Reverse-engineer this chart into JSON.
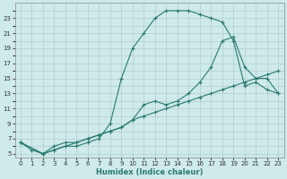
{
  "xlabel": "Humidex (Indice chaleur)",
  "bg_color": "#ceeaea",
  "grid_color": "#b8d8d8",
  "line_color": "#2a7a70",
  "xlim": [
    -0.5,
    23.5
  ],
  "ylim": [
    4.5,
    25
  ],
  "xticks": [
    0,
    1,
    2,
    3,
    4,
    5,
    6,
    7,
    8,
    9,
    10,
    11,
    12,
    13,
    14,
    15,
    16,
    17,
    18,
    19,
    20,
    21,
    22,
    23
  ],
  "yticks": [
    5,
    7,
    9,
    11,
    13,
    15,
    17,
    19,
    21,
    23
  ],
  "curve1_x": [
    0,
    1,
    2,
    3,
    4,
    5,
    6,
    7,
    8,
    9,
    10,
    11,
    12,
    13,
    14,
    15,
    16,
    17,
    18,
    19,
    20,
    21,
    22,
    23
  ],
  "curve1_y": [
    6.5,
    5.5,
    5.0,
    5.5,
    6.0,
    6.0,
    6.5,
    7.0,
    9.0,
    15.0,
    19.0,
    21.0,
    23.0,
    24.0,
    24.0,
    24.0,
    23.5,
    23.0,
    22.5,
    20.0,
    14.0,
    14.5,
    13.5,
    13.0
  ],
  "curve2_x": [
    0,
    2,
    3,
    4,
    5,
    6,
    7,
    8,
    9,
    10,
    11,
    12,
    13,
    14,
    15,
    16,
    17,
    18,
    19,
    20,
    21,
    22,
    23
  ],
  "curve2_y": [
    6.5,
    5.0,
    5.5,
    6.0,
    6.5,
    7.0,
    7.5,
    8.0,
    8.5,
    9.5,
    11.5,
    12.0,
    11.5,
    12.0,
    13.0,
    14.5,
    16.5,
    20.0,
    20.5,
    16.5,
    15.0,
    15.0,
    13.0
  ],
  "curve3_x": [
    0,
    2,
    3,
    4,
    5,
    6,
    7,
    8,
    9,
    10,
    11,
    12,
    13,
    14,
    15,
    16,
    17,
    18,
    19,
    20,
    21,
    22,
    23
  ],
  "curve3_y": [
    6.5,
    5.0,
    6.0,
    6.5,
    6.5,
    7.0,
    7.5,
    8.0,
    8.5,
    9.5,
    10.0,
    10.5,
    11.0,
    11.5,
    12.0,
    12.5,
    13.0,
    13.5,
    14.0,
    14.5,
    15.0,
    15.5,
    16.0
  ]
}
